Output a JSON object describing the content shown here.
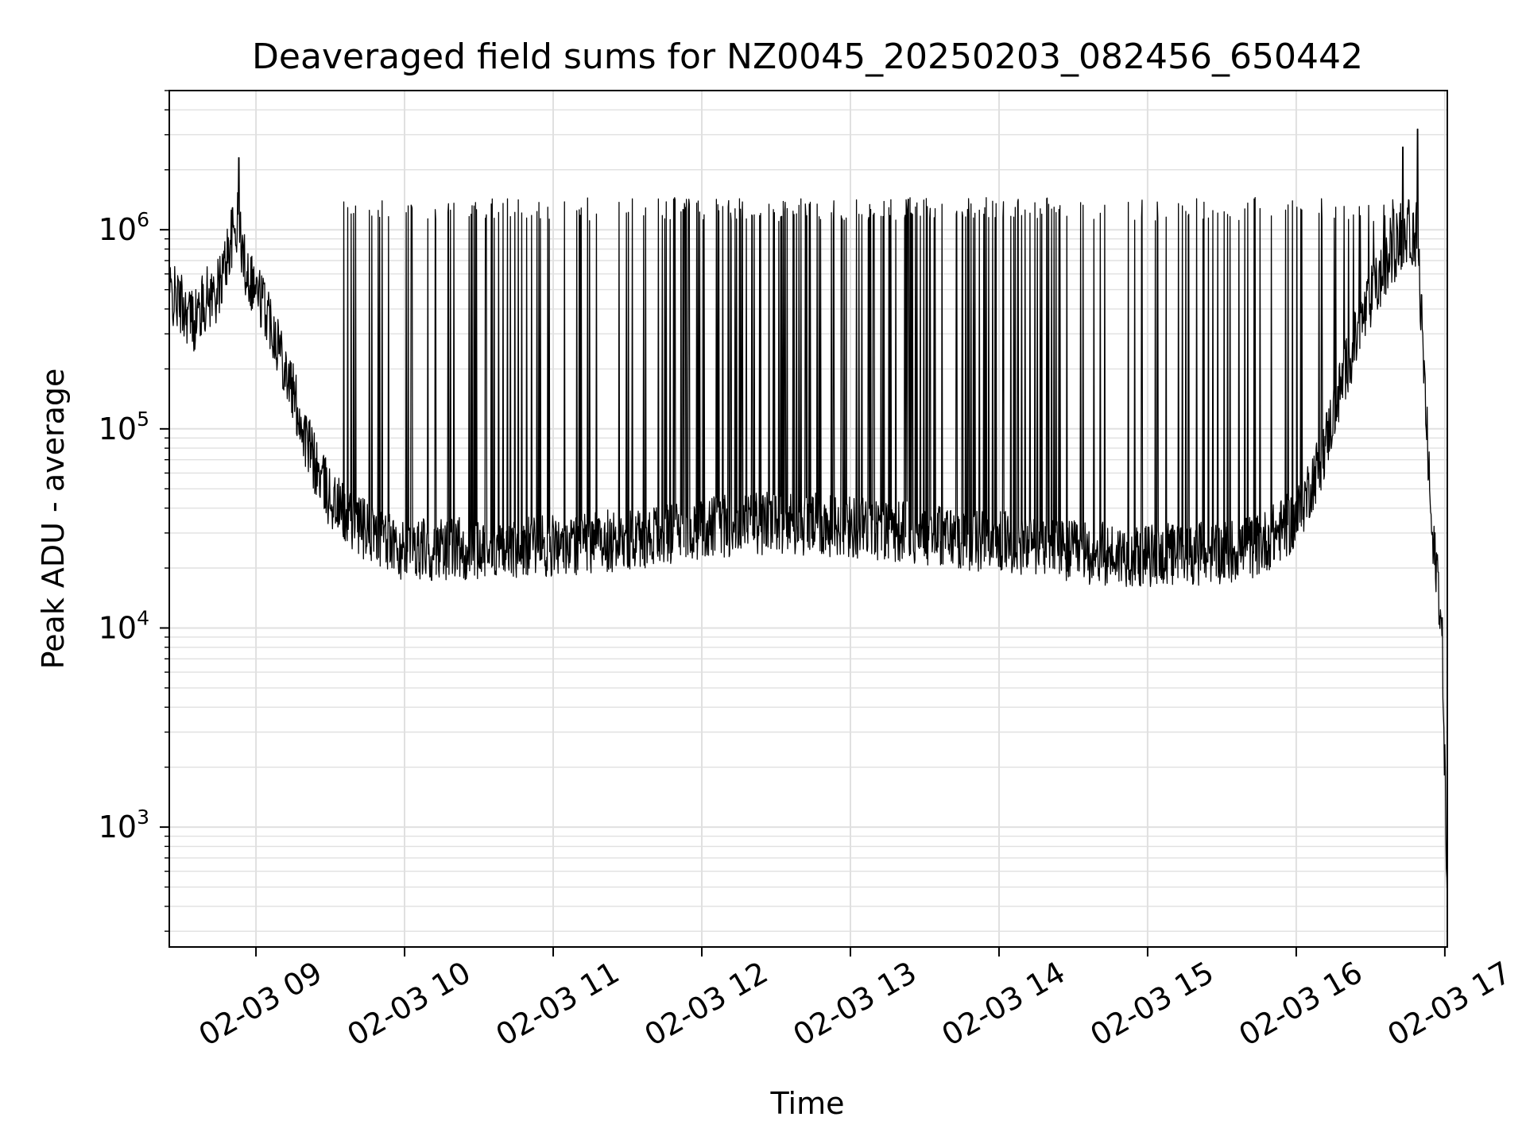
{
  "chart_data": {
    "type": "line",
    "title": "Deaveraged field sums for NZ0045_20250203_082456_650442",
    "xlabel": "Time",
    "ylabel": "Peak ADU - average",
    "xlim": [
      "2025-02-03 08:25",
      "2025-02-03 17:01"
    ],
    "ylim": [
      250,
      5000000
    ],
    "yscale": "log",
    "grid": true,
    "legend": "none",
    "line_color": "#000000",
    "grid_color": "#e0e0e0",
    "x_tick_labels": [
      {
        "label": "02-03 09",
        "value": "2025-02-03 09:00"
      },
      {
        "label": "02-03 10",
        "value": "2025-02-03 10:00"
      },
      {
        "label": "02-03 11",
        "value": "2025-02-03 11:00"
      },
      {
        "label": "02-03 12",
        "value": "2025-02-03 12:00"
      },
      {
        "label": "02-03 13",
        "value": "2025-02-03 13:00"
      },
      {
        "label": "02-03 14",
        "value": "2025-02-03 14:00"
      },
      {
        "label": "02-03 15",
        "value": "2025-02-03 15:00"
      },
      {
        "label": "02-03 16",
        "value": "2025-02-03 16:00"
      },
      {
        "label": "02-03 17",
        "value": "2025-02-03 17:00"
      }
    ],
    "y_tick_labels": [
      {
        "base": "10",
        "exp": "3",
        "value": 1000
      },
      {
        "base": "10",
        "exp": "4",
        "value": 10000
      },
      {
        "base": "10",
        "exp": "5",
        "value": 100000
      },
      {
        "base": "10",
        "exp": "6",
        "value": 1000000
      }
    ],
    "series": [
      {
        "x": [
          "2025-02-03 08:25",
          "2025-02-03 08:30",
          "2025-02-03 08:35",
          "2025-02-03 08:40",
          "2025-02-03 08:45",
          "2025-02-03 08:50",
          "2025-02-03 08:53",
          "2025-02-03 08:55",
          "2025-02-03 09:00",
          "2025-02-03 09:05",
          "2025-02-03 09:10",
          "2025-02-03 09:15",
          "2025-02-03 09:20",
          "2025-02-03 09:25",
          "2025-02-03 09:30",
          "2025-02-03 09:35",
          "2025-02-03 09:40",
          "2025-02-03 09:45",
          "2025-02-03 09:50",
          "2025-02-03 09:55",
          "2025-02-03 10:00",
          "2025-02-03 10:30",
          "2025-02-03 11:00",
          "2025-02-03 11:30",
          "2025-02-03 12:00",
          "2025-02-03 12:30",
          "2025-02-03 13:00",
          "2025-02-03 13:30",
          "2025-02-03 14:00",
          "2025-02-03 14:30",
          "2025-02-03 15:00",
          "2025-02-03 15:30",
          "2025-02-03 15:45",
          "2025-02-03 16:00",
          "2025-02-03 16:10",
          "2025-02-03 16:20",
          "2025-02-03 16:30",
          "2025-02-03 16:40",
          "2025-02-03 16:45",
          "2025-02-03 16:49",
          "2025-02-03 16:52",
          "2025-02-03 16:55",
          "2025-02-03 16:57",
          "2025-02-03 16:59",
          "2025-02-03 17:00",
          "2025-02-03 17:01"
        ],
        "baseline": [
          480000,
          420000,
          350000,
          450000,
          500000,
          900000,
          1100000,
          700000,
          500000,
          380000,
          250000,
          150000,
          90000,
          60000,
          45000,
          38000,
          33000,
          30000,
          28000,
          26000,
          25000,
          25000,
          26000,
          28000,
          32000,
          34000,
          32000,
          30000,
          27000,
          24000,
          23000,
          24000,
          26000,
          35000,
          70000,
          200000,
          450000,
          800000,
          1000000,
          900000,
          150000,
          25000,
          20000,
          8000,
          2000,
          400
        ],
        "spike_peak": 1300000,
        "max_peak": 3200000
      }
    ]
  }
}
